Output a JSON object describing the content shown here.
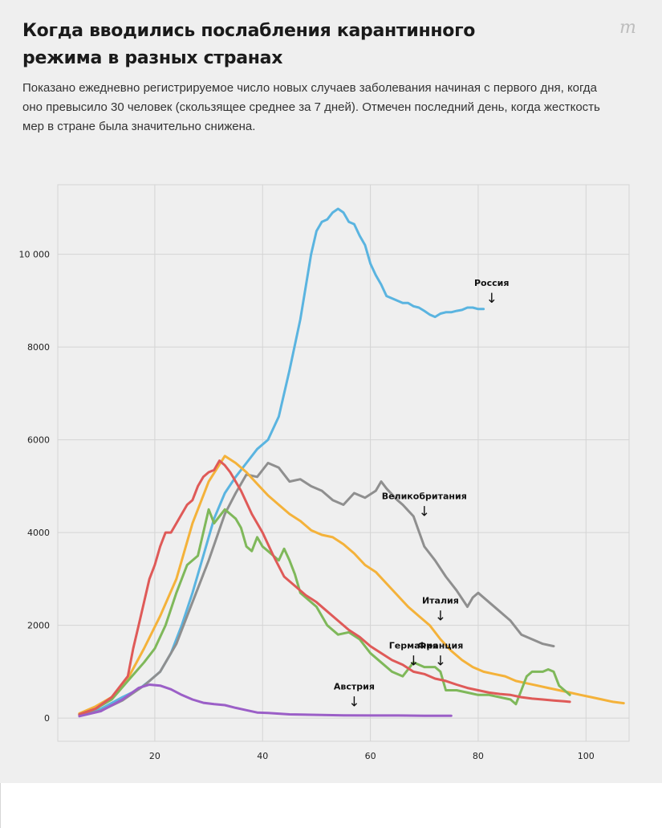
{
  "header": {
    "title": "Когда вводились послабления карантинного режима в разных странах",
    "subtitle": "Показано ежедневно регистрируемое число новых случаев заболевания начиная с первого дня, когда оно превысило 30 человек (скользящее среднее за 7 дней). Отмечен последний день, когда жесткость мер в стране была значительно снижена.",
    "logo": "m"
  },
  "chart_data": {
    "type": "line",
    "title": "Когда вводились послабления карантинного режима в разных странах",
    "xlabel": "",
    "ylabel": "",
    "xlim": [
      2,
      108
    ],
    "ylim": [
      -500,
      11500
    ],
    "x_ticks": [
      20,
      40,
      60,
      80,
      100
    ],
    "y_ticks": [
      0,
      2000,
      4000,
      6000,
      8000,
      10000
    ],
    "x_tick_labels": [
      "20",
      "40",
      "60",
      "80",
      "100"
    ],
    "y_tick_labels": [
      "0",
      "2000",
      "4000",
      "6000",
      "8000",
      "10 000"
    ],
    "grid": true,
    "legend": "none",
    "series": [
      {
        "name": "Россия",
        "color": "#5ab4e0",
        "x": [
          6,
          10,
          14,
          17,
          19,
          21,
          23,
          25,
          27,
          29,
          31,
          33,
          35,
          37,
          39,
          41,
          43,
          45,
          47,
          49,
          50,
          51,
          52,
          53,
          54,
          55,
          56,
          57,
          58,
          59,
          60,
          61,
          62,
          63,
          64,
          65,
          66,
          67,
          68,
          69,
          70,
          71,
          72,
          73,
          74,
          75,
          76,
          77,
          78,
          79,
          80,
          81
        ],
        "y": [
          70,
          200,
          450,
          620,
          800,
          1000,
          1400,
          2000,
          2700,
          3500,
          4300,
          4850,
          5200,
          5500,
          5800,
          6000,
          6500,
          7500,
          8600,
          10000,
          10500,
          10700,
          10750,
          10900,
          10980,
          10900,
          10700,
          10650,
          10400,
          10200,
          9800,
          9550,
          9350,
          9100,
          9050,
          9000,
          8950,
          8950,
          8880,
          8850,
          8780,
          8700,
          8650,
          8720,
          8750,
          8750,
          8780,
          8800,
          8850,
          8850,
          8820,
          8820
        ]
      },
      {
        "name": "Великобритания",
        "color": "#8f8f8f",
        "x": [
          6,
          10,
          14,
          18,
          21,
          24,
          27,
          30,
          33,
          35,
          37,
          39,
          41,
          43,
          45,
          47,
          49,
          51,
          53,
          55,
          57,
          59,
          61,
          62,
          63,
          65,
          66,
          68,
          70,
          72,
          74,
          76,
          78,
          79,
          80,
          82,
          84,
          86,
          88,
          90,
          92,
          94
        ],
        "y": [
          60,
          160,
          380,
          700,
          1000,
          1600,
          2500,
          3400,
          4400,
          4850,
          5250,
          5200,
          5500,
          5400,
          5100,
          5150,
          5000,
          4900,
          4700,
          4600,
          4850,
          4750,
          4900,
          5100,
          4950,
          4700,
          4600,
          4350,
          3700,
          3400,
          3050,
          2750,
          2400,
          2600,
          2700,
          2500,
          2300,
          2100,
          1800,
          1700,
          1600,
          1550
        ]
      },
      {
        "name": "Италия",
        "color": "#f4b23a",
        "x": [
          6,
          9,
          12,
          15,
          18,
          21,
          24,
          27,
          30,
          33,
          35,
          37,
          39,
          41,
          43,
          45,
          47,
          49,
          51,
          53,
          55,
          57,
          59,
          61,
          63,
          65,
          67,
          69,
          71,
          73,
          75,
          77,
          79,
          81,
          83,
          85,
          87,
          89,
          91,
          93,
          95,
          97,
          99,
          101,
          103,
          105,
          107
        ],
        "y": [
          100,
          250,
          450,
          850,
          1500,
          2200,
          3000,
          4200,
          5100,
          5650,
          5500,
          5300,
          5050,
          4800,
          4600,
          4400,
          4250,
          4050,
          3950,
          3900,
          3750,
          3550,
          3300,
          3150,
          2900,
          2650,
          2400,
          2200,
          2000,
          1700,
          1450,
          1250,
          1100,
          1000,
          950,
          900,
          800,
          750,
          700,
          650,
          600,
          550,
          500,
          450,
          400,
          350,
          320
        ]
      },
      {
        "name": "Франция",
        "color": "#7fb85a",
        "x": [
          6,
          9,
          12,
          15,
          18,
          20,
          22,
          24,
          26,
          28,
          30,
          31,
          32,
          33,
          34,
          35,
          36,
          37,
          38,
          39,
          40,
          41,
          42,
          43,
          44,
          45,
          46,
          47,
          48,
          50,
          52,
          54,
          56,
          58,
          60,
          62,
          64,
          66,
          68,
          70,
          72,
          73,
          74,
          76,
          78,
          80,
          82,
          84,
          86,
          87,
          88,
          89,
          90,
          92,
          93,
          94,
          95,
          96,
          97
        ],
        "y": [
          80,
          200,
          400,
          800,
          1200,
          1500,
          2000,
          2700,
          3300,
          3500,
          4500,
          4200,
          4350,
          4500,
          4400,
          4300,
          4100,
          3700,
          3600,
          3900,
          3700,
          3600,
          3500,
          3400,
          3650,
          3400,
          3100,
          2700,
          2600,
          2400,
          2000,
          1800,
          1850,
          1700,
          1400,
          1200,
          1000,
          900,
          1200,
          1100,
          1100,
          1000,
          600,
          600,
          550,
          500,
          500,
          450,
          400,
          300,
          600,
          900,
          1000,
          1000,
          1050,
          1000,
          700,
          600,
          500
        ]
      },
      {
        "name": "Германия",
        "color": "#df5a58",
        "x": [
          6,
          9,
          12,
          15,
          16,
          17,
          18,
          19,
          20,
          21,
          22,
          23,
          24,
          25,
          26,
          27,
          28,
          29,
          30,
          31,
          32,
          33,
          34,
          35,
          36,
          38,
          40,
          42,
          44,
          46,
          48,
          50,
          52,
          54,
          56,
          58,
          60,
          62,
          64,
          66,
          68,
          70,
          72,
          74,
          76,
          78,
          80,
          82,
          84,
          86,
          88,
          90,
          92,
          94,
          96,
          97
        ],
        "y": [
          80,
          200,
          450,
          900,
          1500,
          2000,
          2500,
          3000,
          3300,
          3700,
          4000,
          4000,
          4200,
          4400,
          4600,
          4700,
          5000,
          5200,
          5300,
          5350,
          5550,
          5450,
          5300,
          5100,
          4900,
          4400,
          4000,
          3500,
          3050,
          2850,
          2650,
          2500,
          2300,
          2100,
          1900,
          1750,
          1550,
          1400,
          1250,
          1150,
          1000,
          950,
          850,
          800,
          720,
          650,
          600,
          550,
          520,
          500,
          450,
          420,
          400,
          380,
          360,
          350
        ]
      },
      {
        "name": "Австрия",
        "color": "#9b5fc7",
        "x": [
          6,
          10,
          14,
          17,
          19,
          21,
          23,
          25,
          27,
          29,
          31,
          33,
          35,
          37,
          39,
          41,
          45,
          50,
          55,
          60,
          65,
          70,
          75
        ],
        "y": [
          40,
          150,
          400,
          650,
          720,
          700,
          620,
          500,
          400,
          330,
          300,
          280,
          220,
          170,
          120,
          110,
          80,
          70,
          60,
          55,
          55,
          50,
          50
        ]
      }
    ],
    "annotations": [
      {
        "text": "Россия",
        "arrow": "↓",
        "x": 82.5,
        "y": 8850
      },
      {
        "text": "Великобритания",
        "arrow": "↓",
        "x": 70,
        "y": 4250
      },
      {
        "text": "Италия",
        "arrow": "↓",
        "x": 73,
        "y": 2000
      },
      {
        "text": "Германия",
        "arrow": "↓",
        "x": 68,
        "y": 1030
      },
      {
        "text": "Франция",
        "arrow": "↓",
        "x": 73,
        "y": 1030
      },
      {
        "text": "Австрия",
        "arrow": "↓",
        "x": 57,
        "y": 150
      }
    ]
  }
}
